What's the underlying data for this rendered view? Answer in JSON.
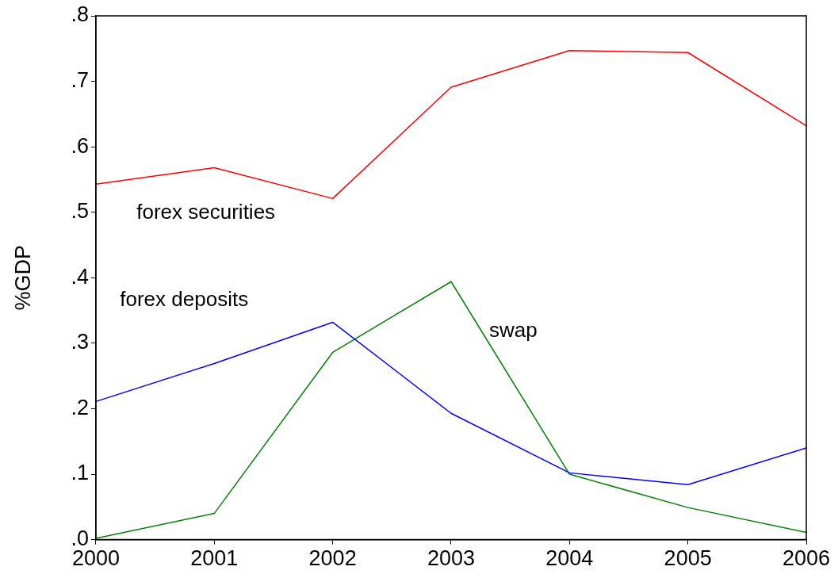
{
  "chart_data": {
    "type": "line",
    "ylabel": "%GDP",
    "x": [
      2000,
      2001,
      2002,
      2003,
      2004,
      2005,
      2006
    ],
    "xlim": [
      2000,
      2006
    ],
    "xticks": [
      2000,
      2001,
      2002,
      2003,
      2004,
      2005,
      2006
    ],
    "ylim": [
      0,
      0.8
    ],
    "yticks": [
      {
        "value": 0,
        "label": ".0"
      },
      {
        "value": 0.1,
        "label": ".1"
      },
      {
        "value": 0.2,
        "label": ".2"
      },
      {
        "value": 0.3,
        "label": ".3"
      },
      {
        "value": 0.4,
        "label": ".4"
      },
      {
        "value": 0.5,
        "label": ".5"
      },
      {
        "value": 0.6,
        "label": ".6"
      },
      {
        "value": 0.7,
        "label": ".7"
      },
      {
        "value": 0.8,
        "label": ".8"
      }
    ],
    "grid": false,
    "legend": false,
    "marker": "none",
    "line_style": "solid",
    "series": [
      {
        "name": "forex securities",
        "color": "#ff0000",
        "values": [
          0.543,
          0.568,
          0.521,
          0.691,
          0.747,
          0.744,
          0.632
        ]
      },
      {
        "name": "forex deposits",
        "color": "#0000ff",
        "values": [
          0.211,
          0.269,
          0.332,
          0.193,
          0.102,
          0.084,
          0.14
        ]
      },
      {
        "name": "swap",
        "color": "#008000",
        "values": [
          0.002,
          0.04,
          0.286,
          0.394,
          0.1,
          0.049,
          0.011
        ]
      }
    ]
  }
}
